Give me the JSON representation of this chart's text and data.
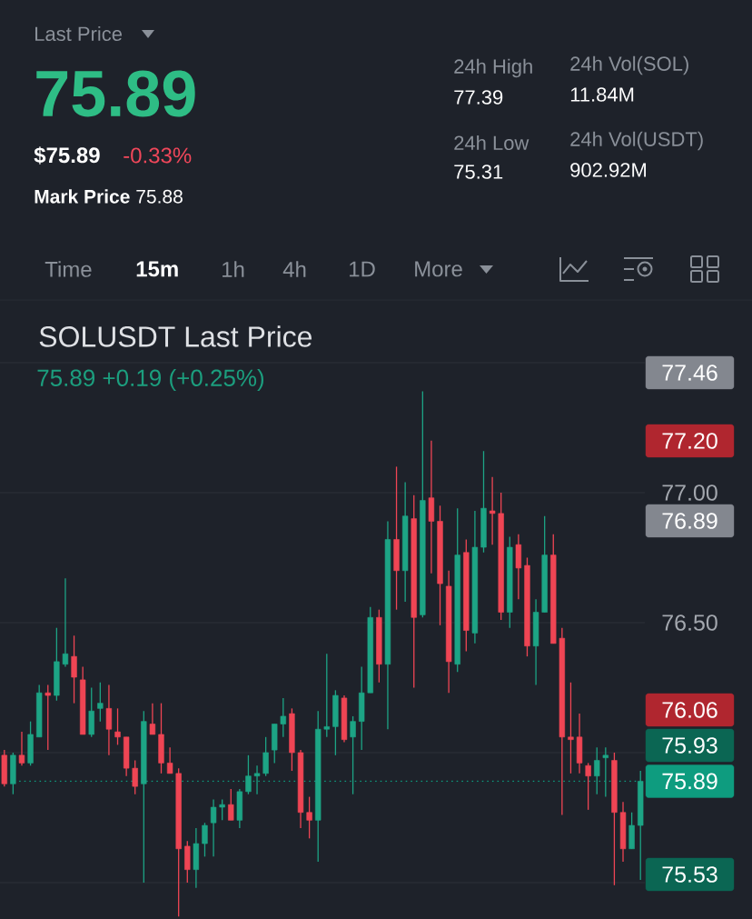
{
  "chart_data": {
    "type": "candlestick",
    "title": "SOLUSDT Last Price",
    "subtitle": "75.89  +0.19 (+0.25%)",
    "annotations": [
      "Last Price",
      "75.89",
      "$75.89",
      "-0.33%",
      "**Mark Price** 75.88",
      "24h High",
      "77.39",
      "24h Low",
      "75.31",
      "24h Vol(SOL)",
      "11.84M",
      "24h Vol(USDT)",
      "902.92M",
      "Time",
      "15m",
      "1h",
      "4h",
      "1D",
      "More",
      "77.46",
      "77.20",
      "76.89",
      "76.06",
      "75.93",
      "75.53"
    ],
    "categories": [
      null,
      null,
      null,
      null,
      null,
      null,
      null,
      null,
      null,
      null,
      null,
      null,
      null,
      null,
      null,
      null,
      null,
      null,
      null,
      null,
      null,
      null,
      null,
      null,
      null,
      null,
      null,
      null,
      null,
      null,
      null,
      null,
      null,
      null,
      null,
      null,
      null,
      null,
      null,
      null,
      null,
      null,
      null,
      null,
      null,
      null,
      null,
      null,
      null,
      null,
      null,
      null,
      null,
      null,
      null,
      null,
      null,
      null,
      null,
      null,
      null,
      null,
      null,
      null,
      null,
      null,
      null,
      null,
      null,
      null,
      null,
      null,
      null,
      null
    ],
    "ohlc": [
      [
        75.99,
        76.01,
        75.87,
        75.88
      ],
      [
        75.88,
        76.0,
        75.84,
        75.99
      ],
      [
        75.99,
        76.08,
        75.95,
        75.96
      ],
      [
        75.96,
        76.12,
        75.95,
        76.07
      ],
      [
        76.06,
        76.26,
        76.06,
        76.23
      ],
      [
        76.23,
        76.26,
        76.01,
        76.22
      ],
      [
        76.22,
        76.48,
        76.2,
        76.35
      ],
      [
        76.34,
        76.67,
        76.33,
        76.38
      ],
      [
        76.37,
        76.45,
        76.19,
        76.29
      ],
      [
        76.28,
        76.33,
        76.07,
        76.07
      ],
      [
        76.07,
        76.25,
        76.06,
        76.16
      ],
      [
        76.17,
        76.27,
        76.12,
        76.19
      ],
      [
        76.17,
        76.26,
        75.99,
        76.09
      ],
      [
        76.08,
        76.17,
        76.03,
        76.06
      ],
      [
        76.06,
        76.06,
        75.91,
        75.94
      ],
      [
        75.94,
        75.97,
        75.84,
        75.87
      ],
      [
        75.88,
        76.16,
        75.5,
        76.12
      ],
      [
        76.11,
        76.19,
        76.07,
        76.07
      ],
      [
        76.07,
        76.19,
        75.92,
        75.96
      ],
      [
        75.96,
        76.02,
        75.92,
        75.92
      ],
      [
        75.92,
        75.94,
        75.37,
        75.63
      ],
      [
        75.64,
        75.66,
        75.5,
        75.55
      ],
      [
        75.55,
        75.71,
        75.48,
        75.65
      ],
      [
        75.65,
        75.73,
        75.6,
        75.72
      ],
      [
        75.73,
        75.82,
        75.6,
        75.79
      ],
      [
        75.79,
        75.82,
        75.74,
        75.8
      ],
      [
        75.8,
        75.86,
        75.74,
        75.74
      ],
      [
        75.74,
        75.86,
        75.71,
        75.85
      ],
      [
        75.85,
        75.99,
        75.84,
        75.91
      ],
      [
        75.91,
        75.95,
        75.84,
        75.92
      ],
      [
        75.92,
        76.06,
        75.91,
        76.0
      ],
      [
        76.01,
        76.11,
        75.96,
        76.11
      ],
      [
        76.11,
        76.21,
        76.06,
        76.14
      ],
      [
        76.15,
        76.17,
        75.93,
        76.0
      ],
      [
        76.0,
        76.01,
        75.71,
        75.77
      ],
      [
        75.77,
        75.83,
        75.67,
        75.74
      ],
      [
        75.74,
        76.16,
        75.58,
        76.09
      ],
      [
        76.09,
        76.38,
        76.06,
        76.1
      ],
      [
        76.1,
        76.24,
        75.99,
        76.22
      ],
      [
        76.21,
        76.22,
        76.04,
        76.05
      ],
      [
        76.06,
        76.14,
        75.84,
        76.12
      ],
      [
        76.12,
        76.33,
        76.01,
        76.23
      ],
      [
        76.23,
        76.56,
        76.23,
        76.52
      ],
      [
        76.52,
        76.55,
        76.27,
        76.34
      ],
      [
        76.34,
        76.89,
        76.09,
        76.82
      ],
      [
        76.82,
        77.1,
        76.55,
        76.7
      ],
      [
        76.7,
        77.04,
        76.58,
        76.91
      ],
      [
        76.9,
        76.99,
        76.25,
        76.52
      ],
      [
        76.53,
        77.39,
        76.52,
        76.97
      ],
      [
        76.98,
        77.2,
        76.69,
        76.89
      ],
      [
        76.89,
        76.95,
        76.49,
        76.65
      ],
      [
        76.64,
        76.7,
        76.23,
        76.35
      ],
      [
        76.34,
        76.94,
        76.31,
        76.76
      ],
      [
        76.77,
        76.82,
        76.39,
        76.47
      ],
      [
        76.46,
        76.93,
        76.42,
        76.79
      ],
      [
        76.79,
        77.16,
        76.77,
        76.94
      ],
      [
        76.93,
        77.06,
        76.8,
        76.92
      ],
      [
        76.92,
        77.0,
        76.51,
        76.54
      ],
      [
        76.54,
        76.83,
        76.48,
        76.79
      ],
      [
        76.8,
        76.84,
        76.59,
        76.71
      ],
      [
        76.72,
        76.75,
        76.37,
        76.41
      ],
      [
        76.41,
        76.59,
        76.26,
        76.54
      ],
      [
        76.54,
        76.91,
        76.54,
        76.76
      ],
      [
        76.76,
        76.84,
        76.42,
        76.42
      ],
      [
        76.44,
        76.48,
        75.76,
        76.06
      ],
      [
        76.06,
        76.27,
        75.92,
        76.05
      ],
      [
        76.06,
        76.15,
        75.92,
        75.96
      ],
      [
        75.95,
        75.96,
        75.78,
        75.91
      ],
      [
        75.91,
        76.02,
        75.84,
        75.97
      ],
      [
        75.98,
        76.02,
        75.83,
        75.99
      ],
      [
        75.97,
        76.0,
        75.49,
        75.77
      ],
      [
        75.77,
        75.81,
        75.58,
        75.63
      ],
      [
        75.63,
        75.77,
        75.63,
        75.72
      ],
      [
        75.72,
        75.93,
        75.51,
        75.89
      ]
    ],
    "colors": [
      "#ef4554",
      "#1da485",
      "#ef4554",
      "#1da485",
      "#1da485",
      "#ef4554",
      "#1da485",
      "#1da485",
      "#ef4554",
      "#ef4554",
      "#1da485",
      "#1da485",
      "#ef4554",
      "#ef4554",
      "#ef4554",
      "#ef4554",
      "#1da485",
      "#ef4554",
      "#ef4554",
      "#ef4554",
      "#ef4554",
      "#ef4554",
      "#1da485",
      "#1da485",
      "#1da485",
      "#1da485",
      "#ef4554",
      "#1da485",
      "#1da485",
      "#1da485",
      "#1da485",
      "#1da485",
      "#1da485",
      "#ef4554",
      "#ef4554",
      "#ef4554",
      "#1da485",
      "#1da485",
      "#1da485",
      "#ef4554",
      "#1da485",
      "#1da485",
      "#1da485",
      "#ef4554",
      "#1da485",
      "#ef4554",
      "#1da485",
      "#ef4554",
      "#1da485",
      "#ef4554",
      "#ef4554",
      "#ef4554",
      "#1da485",
      "#ef4554",
      "#1da485",
      "#1da485",
      "#ef4554",
      "#ef4554",
      "#1da485",
      "#ef4554",
      "#ef4554",
      "#1da485",
      "#1da485",
      "#ef4554",
      "#ef4554",
      "#ef4554",
      "#ef4554",
      "#ef4554",
      "#1da485",
      "#1da485",
      "#ef4554",
      "#ef4554",
      "#1da485",
      "#1da485"
    ],
    "ylim": [
      75.36,
      77.5
    ],
    "yticks": [
      {
        "value": 75.5,
        "label": null
      },
      {
        "value": 76,
        "label": null
      },
      {
        "value": 76.5,
        "label": "76.50"
      },
      {
        "value": 77,
        "label": "77.00"
      },
      {
        "value": 77.5,
        "label": null
      }
    ],
    "tick_labels": "y",
    "grid": "y",
    "ref_lines": [
      {
        "axis": "y",
        "value": 75.89,
        "label": "75.89",
        "color": "#0e9c7f",
        "line_style": "dotted"
      }
    ]
  }
}
